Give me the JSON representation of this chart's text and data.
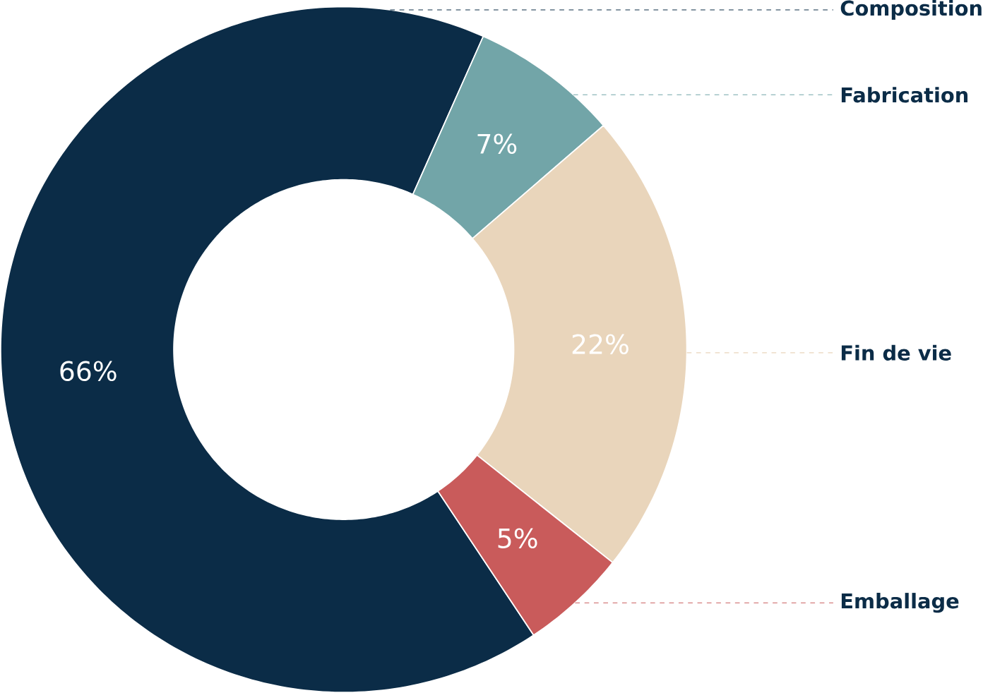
{
  "chart_data": {
    "type": "donut",
    "categories": [
      "Composition",
      "Fabrication",
      "Fin de vie",
      "Emballage"
    ],
    "values": [
      66,
      7,
      22,
      5
    ],
    "colors": [
      "#0b2c47",
      "#72a5a8",
      "#e9d5bb",
      "#c95b5b"
    ],
    "value_labels": [
      "66%",
      "7%",
      "22%",
      "5%"
    ]
  }
}
